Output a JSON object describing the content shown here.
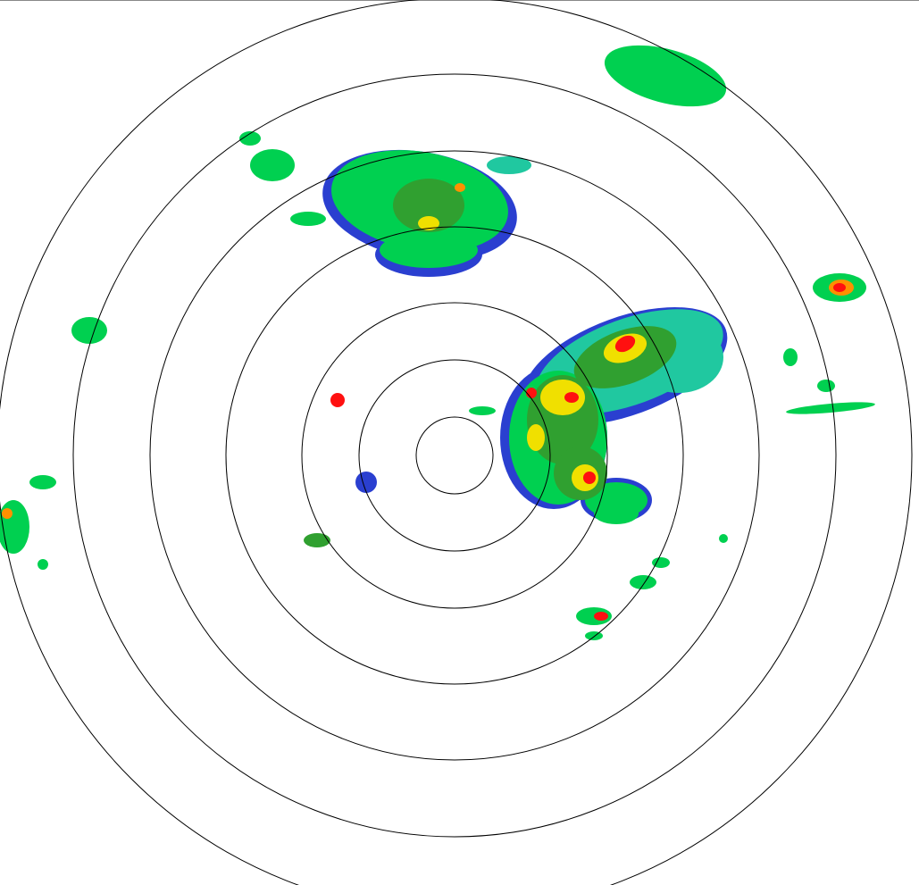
{
  "radar": {
    "range_ring_count": 7,
    "ring_color": "#000000",
    "background": "#ffffff",
    "palette": {
      "very_light": "#2a3fd0",
      "light": "#20c8a0",
      "moderate_low": "#00d050",
      "moderate": "#30a030",
      "heavy_low": "#f0e000",
      "heavy": "#ff9000",
      "intense": "#ff1010"
    }
  }
}
